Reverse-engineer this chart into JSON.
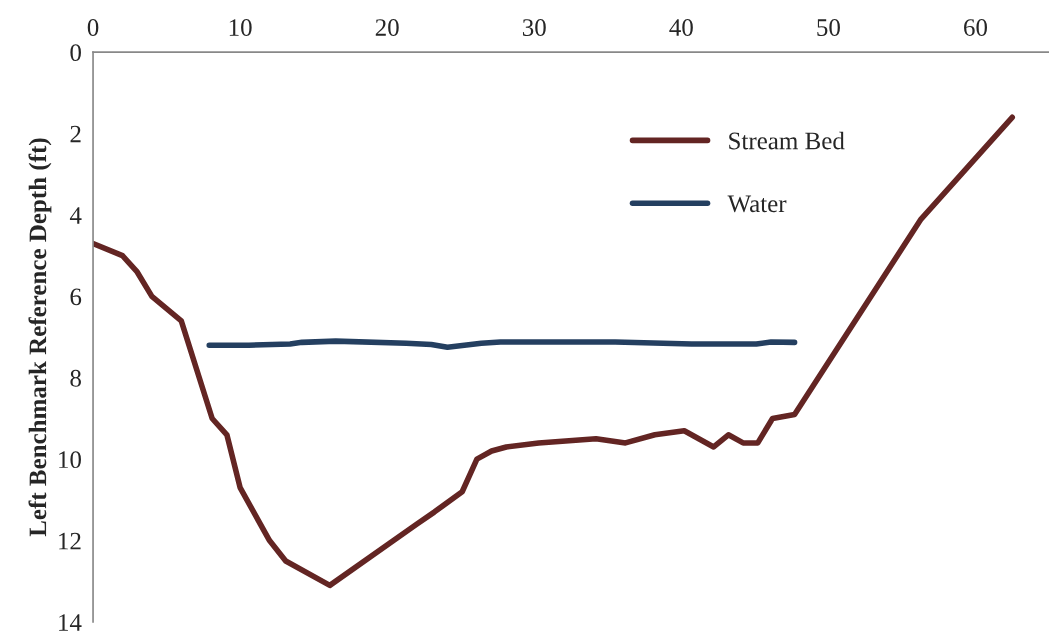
{
  "chart_data": {
    "type": "line",
    "ylabel": "Left Benchmark Reference Depth (ft)",
    "xlim": [
      0,
      65
    ],
    "xticks": [
      0,
      10,
      20,
      30,
      40,
      50,
      60
    ],
    "ylim": [
      14,
      0
    ],
    "yticks": [
      0,
      2,
      4,
      6,
      8,
      10,
      12,
      14
    ],
    "grid": false,
    "legend": "top right",
    "marker": "none",
    "line_style": "solid",
    "series": [
      {
        "name": "Stream Bed",
        "color": "#632523",
        "x": [
          0,
          2.0,
          3.0,
          4.0,
          5.0,
          6.0,
          8.1,
          9.1,
          10.0,
          12.0,
          13.1,
          16.1,
          22.0,
          23.2,
          25.1,
          26.1,
          27.1,
          28.1,
          30.3,
          34.2,
          36.2,
          38.2,
          40.2,
          42.2,
          43.2,
          44.2,
          45.2,
          46.2,
          47.7,
          56.3,
          62.5
        ],
        "values": [
          4.7,
          5.0,
          5.4,
          6.0,
          6.3,
          6.6,
          9.0,
          9.4,
          10.7,
          12.0,
          12.5,
          13.1,
          11.6,
          11.3,
          10.8,
          10.0,
          9.8,
          9.7,
          9.6,
          9.5,
          9.6,
          9.4,
          9.3,
          9.7,
          9.4,
          9.6,
          9.6,
          9.0,
          8.9,
          4.1,
          1.6
        ]
      },
      {
        "name": "Water",
        "color": "#243f60",
        "x": [
          7.9,
          10.6,
          13.4,
          14.2,
          16.5,
          21.3,
          23.0,
          24.1,
          26.4,
          27.7,
          35.5,
          40.7,
          45.1,
          46.1,
          47.7
        ],
        "values": [
          7.2,
          7.2,
          7.17,
          7.13,
          7.1,
          7.15,
          7.18,
          7.25,
          7.15,
          7.12,
          7.12,
          7.17,
          7.17,
          7.12,
          7.13
        ]
      }
    ]
  }
}
